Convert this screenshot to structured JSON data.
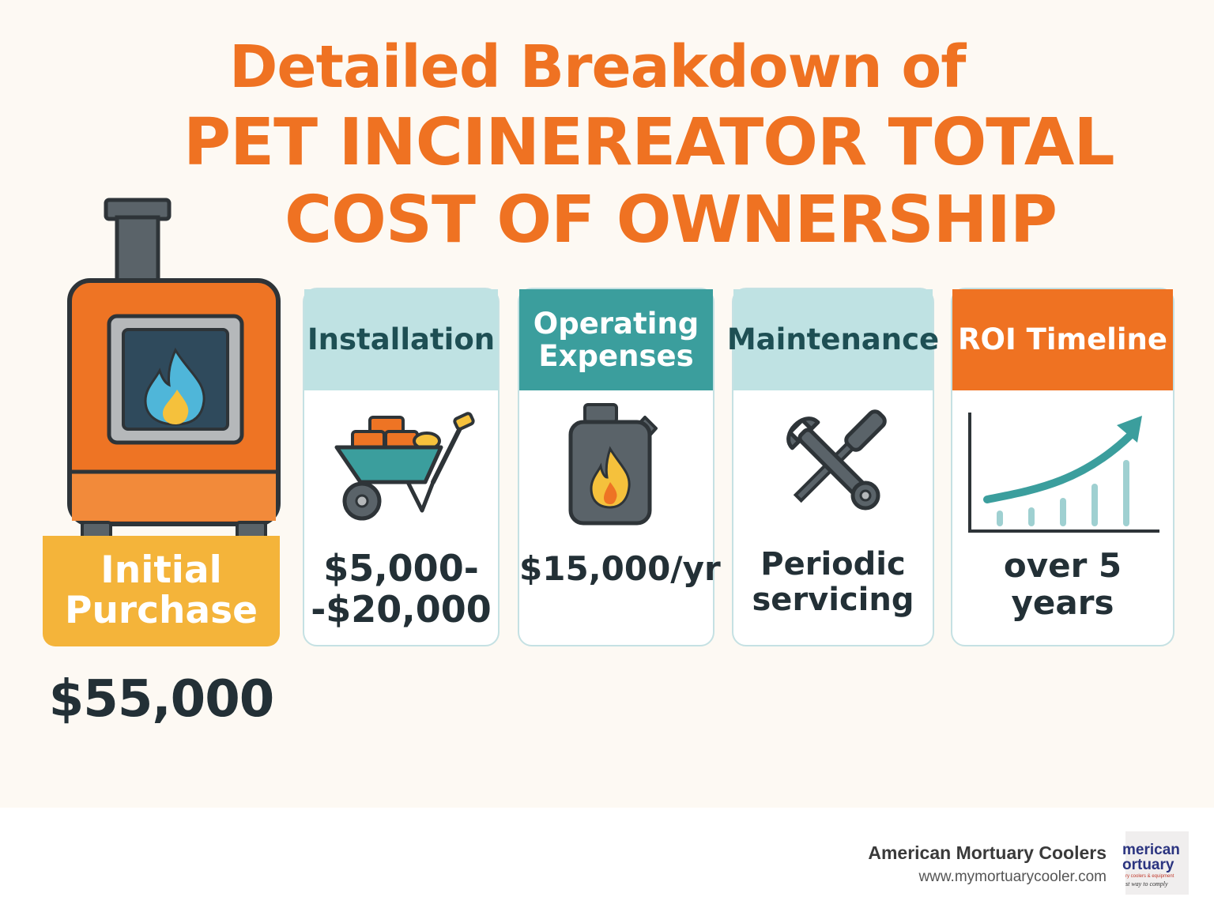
{
  "title": {
    "line1": "Detailed Breakdown of",
    "line2": "PET INCINEREATOR TOTAL",
    "line3": "COST OF OWNERSHIP"
  },
  "initial_purchase": {
    "label": "Initial Purchase",
    "price": "$55,000"
  },
  "cards": [
    {
      "title": "Installation",
      "value": "$5,000--$20,000",
      "icon": "wheelbarrow-icon"
    },
    {
      "title": "Operating Expenses",
      "value": "$15,000/yr",
      "icon": "fuel-can-icon"
    },
    {
      "title": "Maintenance",
      "value": "Periodic servicing",
      "icon": "wrench-screwdriver-icon"
    },
    {
      "title": "ROI Timeline",
      "value": "over 5 years",
      "icon": "growth-chart-icon"
    }
  ],
  "footer": {
    "brand": "American Mortuary Coolers",
    "url": "www.mymortuarycooler.com",
    "logo_line1": "merican",
    "logo_line2": "ortuary",
    "logo_tagline": "ry coolers & equipment",
    "logo_slogan": "st way to comply"
  },
  "colors": {
    "accent_orange": "#ef7222",
    "teal": "#3b9e9d",
    "light_teal": "#bfe2e3",
    "yellow": "#f4b43a",
    "dark_text": "#233036"
  }
}
